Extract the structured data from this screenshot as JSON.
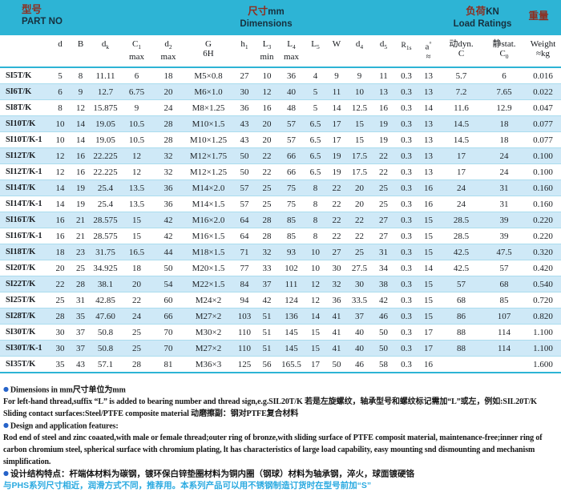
{
  "band": {
    "part_cn": "型号",
    "part_en": "PART NO",
    "dims_cn": "尺寸",
    "dims_unit": "mm",
    "dims_en": "Dimensions",
    "load_cn": "负荷",
    "load_unit": "KN",
    "load_en": "Load Ratings",
    "weight_cn": "重量"
  },
  "columns": [
    {
      "id": "d",
      "l1": "d"
    },
    {
      "id": "B",
      "l1": "B"
    },
    {
      "id": "dk",
      "l1": "d",
      "l1sub": "k"
    },
    {
      "id": "C1-max",
      "l1": "C",
      "l1sub": "1",
      "l2": "max"
    },
    {
      "id": "d2-max",
      "l1": "d",
      "l1sub": "2",
      "l2": "max"
    },
    {
      "id": "G-6H",
      "l1": "G",
      "l2": "6H"
    },
    {
      "id": "h1",
      "l1": "h",
      "l1sub": "1"
    },
    {
      "id": "L3-min",
      "l1": "L",
      "l1sub": "3",
      "l2": "min"
    },
    {
      "id": "L4-max",
      "l1": "L",
      "l1sub": "4",
      "l2": "max"
    },
    {
      "id": "L5",
      "l1": "L",
      "l1sub": "5"
    },
    {
      "id": "W",
      "l1": "W"
    },
    {
      "id": "d4",
      "l1": "d",
      "l1sub": "4"
    },
    {
      "id": "d5",
      "l1": "d",
      "l1sub": "5"
    },
    {
      "id": "R1s",
      "l1": "R",
      "l1sub": "1s",
      "small": true
    },
    {
      "id": "a-deg",
      "l1": "a",
      "l1sup": "°",
      "l2": "≈"
    },
    {
      "id": "dyn-C",
      "l1": "动dyn.",
      "l2": "C"
    },
    {
      "id": "stat-C0",
      "l1": "静stat.",
      "l2": "C",
      "l2sub": "0"
    },
    {
      "id": "weight",
      "l1": "Weight",
      "l2": "≈kg"
    }
  ],
  "rows": [
    [
      "SI5T/K",
      "5",
      "8",
      "11.11",
      "6",
      "18",
      "M5×0.8",
      "27",
      "10",
      "36",
      "4",
      "9",
      "9",
      "11",
      "0.3",
      "13",
      "5.7",
      "6",
      "0.016"
    ],
    [
      "SI6T/K",
      "6",
      "9",
      "12.7",
      "6.75",
      "20",
      "M6×1.0",
      "30",
      "12",
      "40",
      "5",
      "11",
      "10",
      "13",
      "0.3",
      "13",
      "7.2",
      "7.65",
      "0.022"
    ],
    [
      "SI8T/K",
      "8",
      "12",
      "15.875",
      "9",
      "24",
      "M8×1.25",
      "36",
      "16",
      "48",
      "5",
      "14",
      "12.5",
      "16",
      "0.3",
      "14",
      "11.6",
      "12.9",
      "0.047"
    ],
    [
      "SI10T/K",
      "10",
      "14",
      "19.05",
      "10.5",
      "28",
      "M10×1.5",
      "43",
      "20",
      "57",
      "6.5",
      "17",
      "15",
      "19",
      "0.3",
      "13",
      "14.5",
      "18",
      "0.077"
    ],
    [
      "SI10T/K-1",
      "10",
      "14",
      "19.05",
      "10.5",
      "28",
      "M10×1.25",
      "43",
      "20",
      "57",
      "6.5",
      "17",
      "15",
      "19",
      "0.3",
      "13",
      "14.5",
      "18",
      "0.077"
    ],
    [
      "SI12T/K",
      "12",
      "16",
      "22.225",
      "12",
      "32",
      "M12×1.75",
      "50",
      "22",
      "66",
      "6.5",
      "19",
      "17.5",
      "22",
      "0.3",
      "13",
      "17",
      "24",
      "0.100"
    ],
    [
      "SI12T/K-1",
      "12",
      "16",
      "22.225",
      "12",
      "32",
      "M12×1.25",
      "50",
      "22",
      "66",
      "6.5",
      "19",
      "17.5",
      "22",
      "0.3",
      "13",
      "17",
      "24",
      "0.100"
    ],
    [
      "SI14T/K",
      "14",
      "19",
      "25.4",
      "13.5",
      "36",
      "M14×2.0",
      "57",
      "25",
      "75",
      "8",
      "22",
      "20",
      "25",
      "0.3",
      "16",
      "24",
      "31",
      "0.160"
    ],
    [
      "SI14T/K-1",
      "14",
      "19",
      "25.4",
      "13.5",
      "36",
      "M14×1.5",
      "57",
      "25",
      "75",
      "8",
      "22",
      "20",
      "25",
      "0.3",
      "16",
      "24",
      "31",
      "0.160"
    ],
    [
      "SI16T/K",
      "16",
      "21",
      "28.575",
      "15",
      "42",
      "M16×2.0",
      "64",
      "28",
      "85",
      "8",
      "22",
      "22",
      "27",
      "0.3",
      "15",
      "28.5",
      "39",
      "0.220"
    ],
    [
      "SI16T/K-1",
      "16",
      "21",
      "28.575",
      "15",
      "42",
      "M16×1.5",
      "64",
      "28",
      "85",
      "8",
      "22",
      "22",
      "27",
      "0.3",
      "15",
      "28.5",
      "39",
      "0.220"
    ],
    [
      "SI18T/K",
      "18",
      "23",
      "31.75",
      "16.5",
      "44",
      "M18×1.5",
      "71",
      "32",
      "93",
      "10",
      "27",
      "25",
      "31",
      "0.3",
      "15",
      "42.5",
      "47.5",
      "0.320"
    ],
    [
      "SI20T/K",
      "20",
      "25",
      "34.925",
      "18",
      "50",
      "M20×1.5",
      "77",
      "33",
      "102",
      "10",
      "30",
      "27.5",
      "34",
      "0.3",
      "14",
      "42.5",
      "57",
      "0.420"
    ],
    [
      "SI22T/K",
      "22",
      "28",
      "38.1",
      "20",
      "54",
      "M22×1.5",
      "84",
      "37",
      "111",
      "12",
      "32",
      "30",
      "38",
      "0.3",
      "15",
      "57",
      "68",
      "0.540"
    ],
    [
      "SI25T/K",
      "25",
      "31",
      "42.85",
      "22",
      "60",
      "M24×2",
      "94",
      "42",
      "124",
      "12",
      "36",
      "33.5",
      "42",
      "0.3",
      "15",
      "68",
      "85",
      "0.720"
    ],
    [
      "SI28T/K",
      "28",
      "35",
      "47.60",
      "24",
      "66",
      "M27×2",
      "103",
      "51",
      "136",
      "14",
      "41",
      "37",
      "46",
      "0.3",
      "15",
      "86",
      "107",
      "0.820"
    ],
    [
      "SI30T/K",
      "30",
      "37",
      "50.8",
      "25",
      "70",
      "M30×2",
      "110",
      "51",
      "145",
      "15",
      "41",
      "40",
      "50",
      "0.3",
      "17",
      "88",
      "114",
      "1.100"
    ],
    [
      "SI30T/K-1",
      "30",
      "37",
      "50.8",
      "25",
      "70",
      "M27×2",
      "110",
      "51",
      "145",
      "15",
      "41",
      "40",
      "50",
      "0.3",
      "17",
      "88",
      "114",
      "1.100"
    ],
    [
      "SI35T/K",
      "35",
      "43",
      "57.1",
      "28",
      "81",
      "M36×3",
      "125",
      "56",
      "165.5",
      "17",
      "50",
      "46",
      "58",
      "0.3",
      "16",
      "",
      "",
      "1.600"
    ]
  ],
  "footer": {
    "bullet": "●",
    "lines": [
      {
        "text": "Dimensions in mm尺寸单位为mm"
      },
      {
        "text": "For left-hand thread,suffix “L” is added to bearing number and thread sign,e.g.SIL20T/K 若是左旋螺纹，轴承型号和螺纹标记需加“L”或左，例如:SIL20T/K"
      },
      {
        "text": "Sliding contact surfaces:Steel/PTFE composite material 动磨擦副：钢对PTFE复合材料"
      },
      {
        "text": "Design and application features:"
      },
      {
        "text": "Rod end of steel and zinc coaated,with male or female thread;outer ring of bronze,with sliding surface of PTFE composit material, maintenance-free;inner ring of"
      },
      {
        "text": " carbon chromium steel, spherical surface with chromium plating, lt has characteristics of large load capability, easy mounting snd dismounting and  mechanism"
      },
      {
        "text": "simplification."
      },
      {
        "text": "设计结构特点：杆端体材料为碳钢，镀环保白锌垫圈材料为铜内圈（钢球）材料为轴承钢，淬火，球面镀硬铬"
      },
      {
        "text": "与PHS系列尺寸相近，润滑方式不同，推荐用。本系列产品可以用不锈钢制造订货时在型号前加“S”"
      }
    ]
  },
  "colors": {
    "band_bg": "#2db4d5",
    "row_alt": "#cfe9f7",
    "row_line": "#aadcee",
    "header_red": "#8e2e1f",
    "band_dark": "#17303e",
    "footer_cyan": "#29a9e0",
    "bullet_blue": "#2663c9"
  }
}
